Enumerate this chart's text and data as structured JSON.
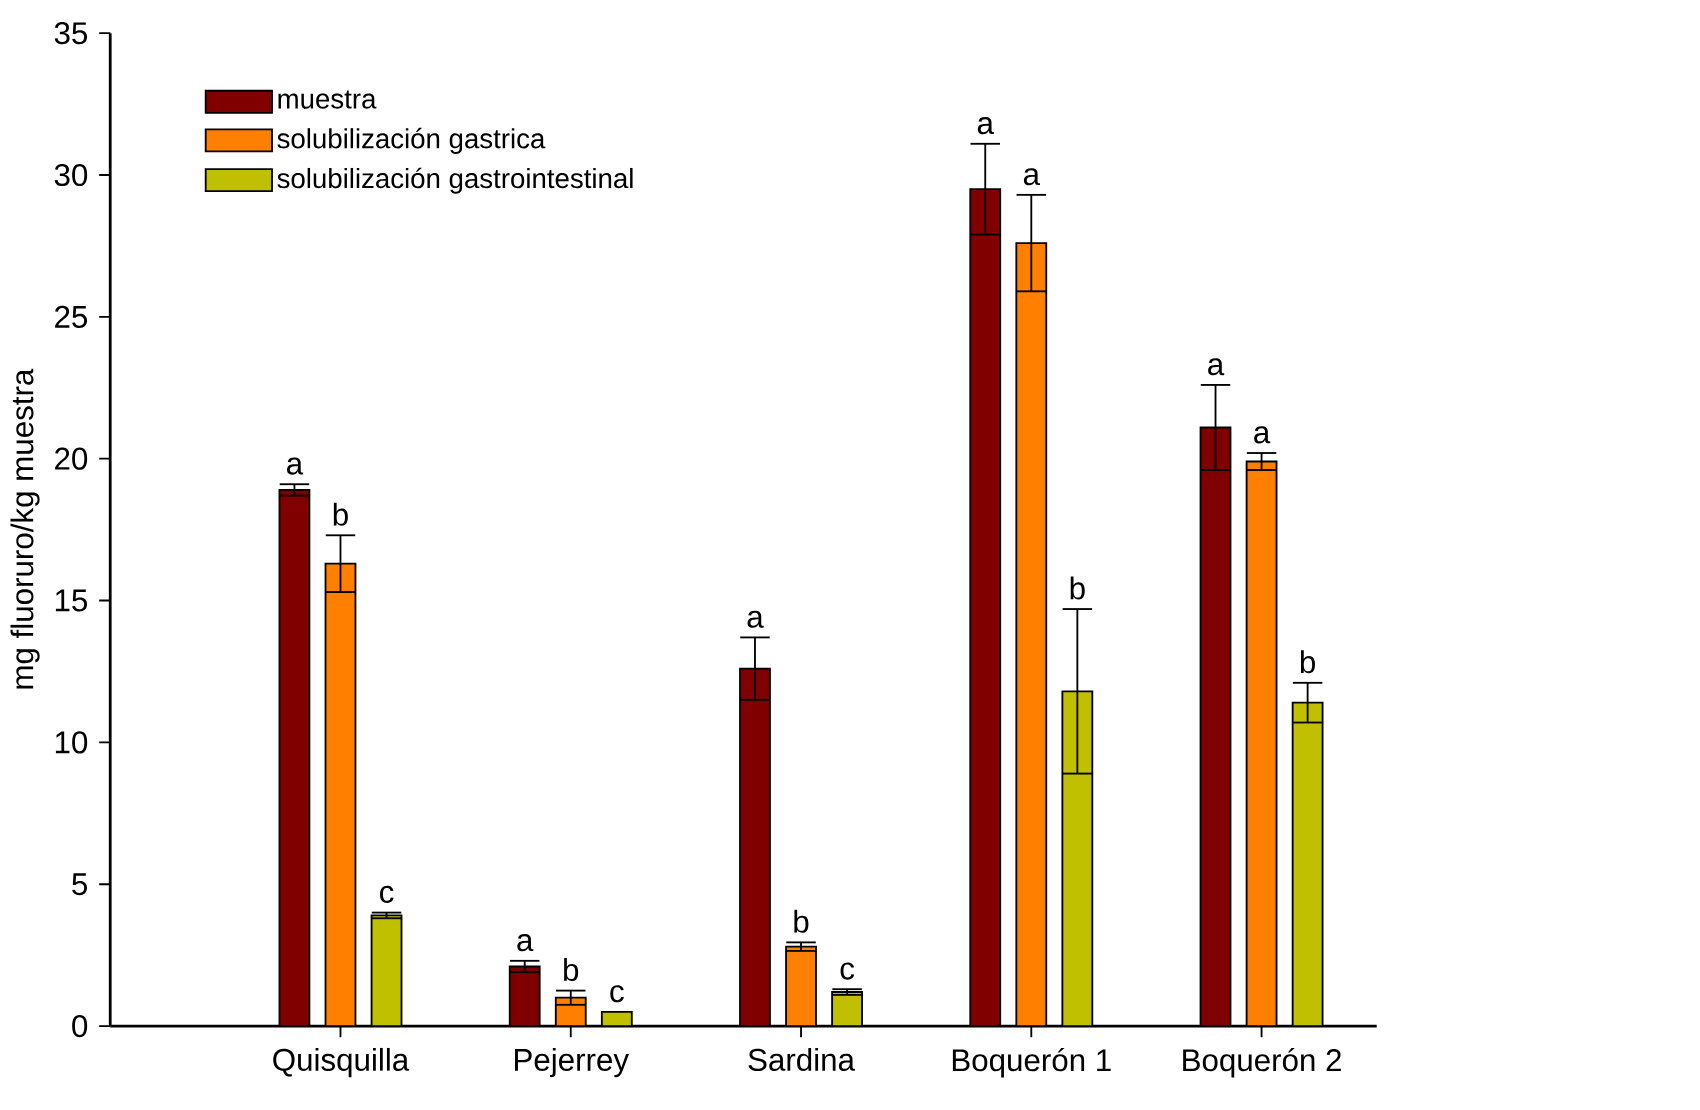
{
  "chart_data": {
    "type": "bar",
    "ylabel": "mg fluoruro/kg muestra",
    "categories": [
      "Quisquilla",
      "Pejerrey",
      "Sardina",
      "Boquerón 1",
      "Boquerón 2"
    ],
    "series": [
      {
        "name": "muestra",
        "color": "#800000",
        "values": [
          18.9,
          2.1,
          12.6,
          29.5,
          21.1
        ],
        "errors": [
          0.2,
          0.2,
          1.1,
          1.6,
          1.5
        ],
        "value_labels": [
          "a",
          "a",
          "a",
          "a",
          "a"
        ]
      },
      {
        "name": "solubilización gastrica",
        "color": "#ff8000",
        "values": [
          16.3,
          1.0,
          2.8,
          27.6,
          19.9
        ],
        "errors": [
          1.0,
          0.25,
          0.15,
          1.7,
          0.3
        ],
        "value_labels": [
          "b",
          "b",
          "b",
          "a",
          "a"
        ]
      },
      {
        "name": "solubilización gastrointestinal",
        "color": "#c0c000",
        "values": [
          3.9,
          0.5,
          1.2,
          11.8,
          11.4
        ],
        "errors": [
          0.1,
          null,
          0.1,
          2.9,
          0.7
        ],
        "value_labels": [
          "c",
          "c",
          "c",
          "b",
          "b"
        ]
      }
    ],
    "ylim": [
      0,
      35
    ],
    "yticks": [
      0,
      5,
      10,
      15,
      20,
      25,
      30,
      35
    ],
    "legend": "top left",
    "grid": false
  }
}
